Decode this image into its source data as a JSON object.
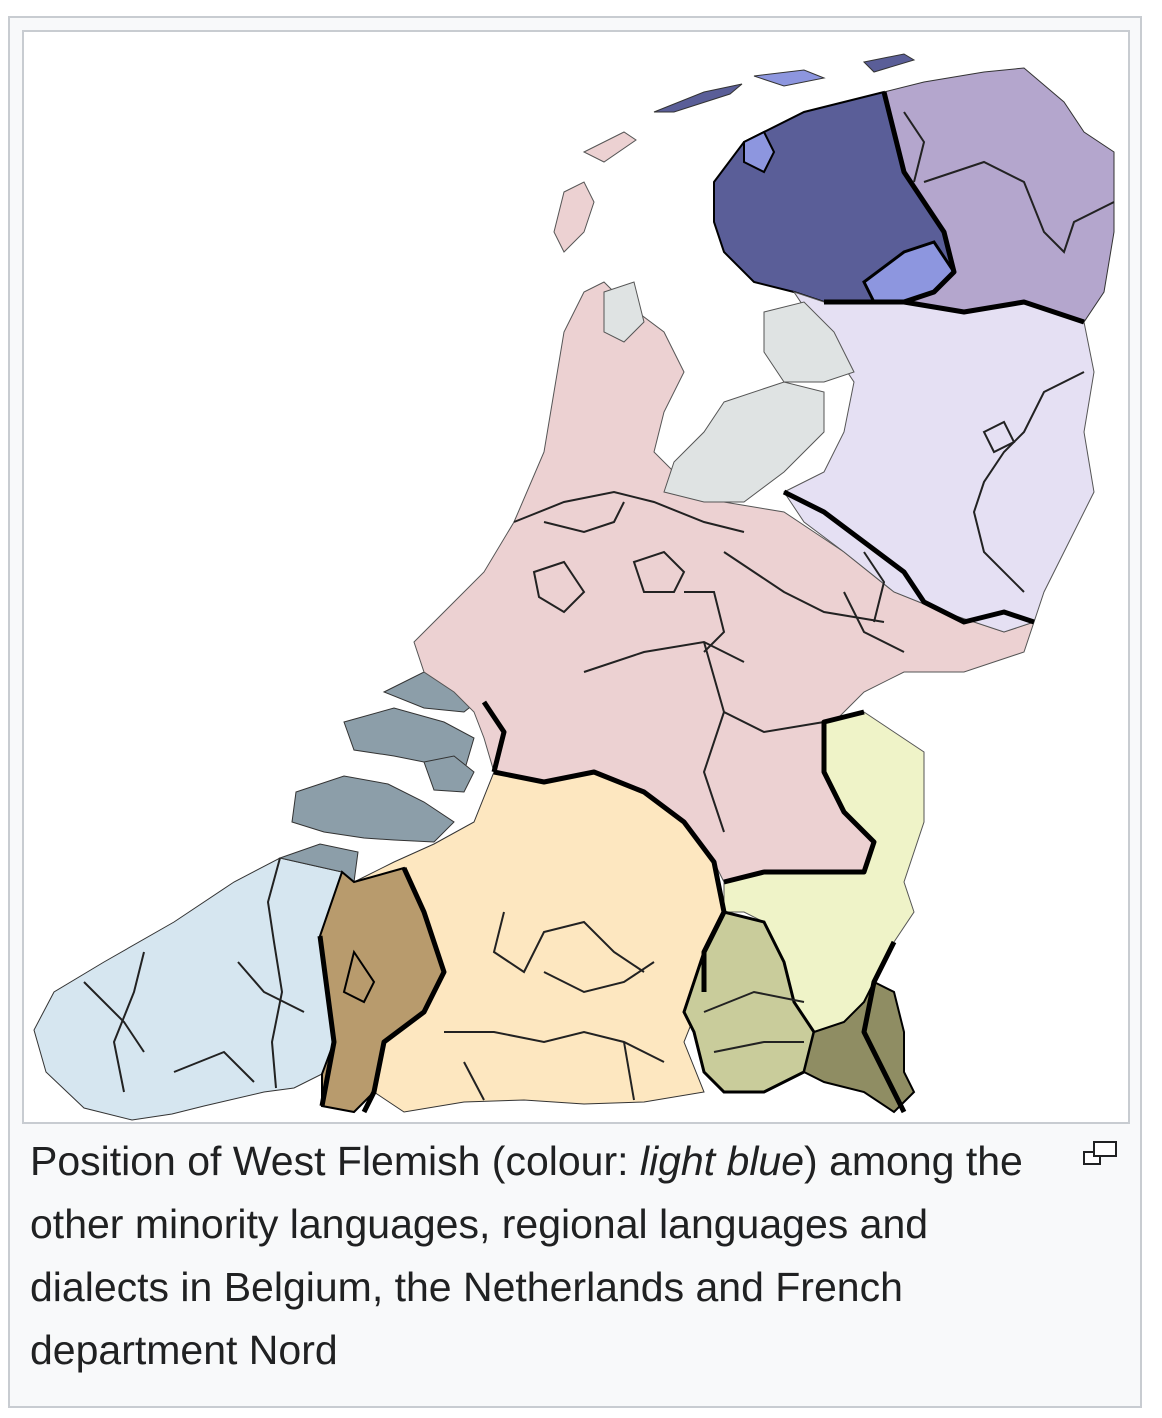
{
  "caption": {
    "text_before": "Position of West Flemish (colour: ",
    "highlight": "light blue",
    "text_after": ") among the other minority languages, regional languages and dialects in Belgium, the Netherlands and French department Nord"
  },
  "colors": {
    "west_flemish": "#d6e6f0",
    "zeelandic": "#8c9ea9",
    "east_flemish": "#b89b6d",
    "brabantian": "#fde7c0",
    "hollandic": "#ecd1d2",
    "frisian": "#5a5e98",
    "low_saxon": "#b4a6cd",
    "east_netherlands": "#e5e0f3",
    "flevoland": "#dfe3e3",
    "limburgish": "#eff3c8",
    "limburg_south": "#c9cc9b",
    "ripuarian": "#8f8d63",
    "island_light": "#8d96df",
    "border": "#000000"
  },
  "icons": {
    "magnify": "magnify-icon"
  }
}
